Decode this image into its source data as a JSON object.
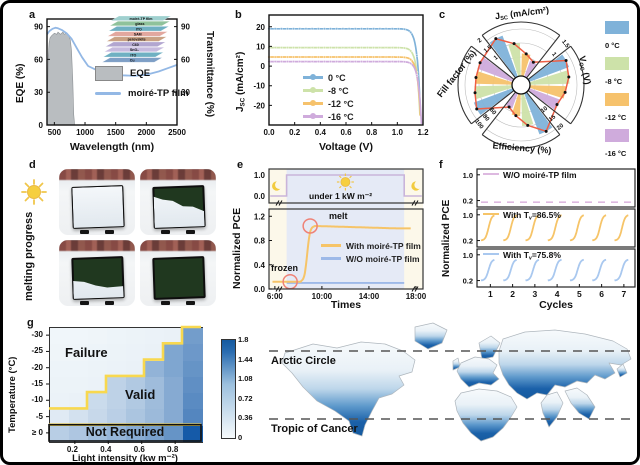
{
  "panels": {
    "a": "a",
    "b": "b",
    "c": "c",
    "d": "d",
    "e": "e",
    "f": "f",
    "g": "g"
  },
  "chart_data": {
    "a": {
      "type": "area+line",
      "panel_label": "a",
      "xlabel": "Wavelength (nm)",
      "ylabel_left": "EQE (%)",
      "ylabel_right": "Transmittance (%)",
      "xlim": [
        380,
        2500
      ],
      "ylim": [
        0,
        97
      ],
      "x_ticks": [
        500,
        1000,
        1500,
        2000,
        2500
      ],
      "y_ticks_left": [
        0,
        30,
        60,
        90
      ],
      "y_ticks_right": [
        30,
        60,
        90
      ],
      "legend": [
        {
          "label": "EQE",
          "type": "area",
          "color": "#b9bdc0"
        },
        {
          "label": "moiré-TP film",
          "type": "line",
          "color": "#93b8e5"
        }
      ],
      "eqe_x": [
        380,
        390,
        400,
        415,
        430,
        460,
        500,
        540,
        560,
        600,
        640,
        660,
        700,
        730,
        760,
        780,
        800,
        815,
        830
      ],
      "eqe_y": [
        0,
        30,
        62,
        75,
        80,
        82,
        84,
        83,
        85,
        83,
        85,
        83,
        84,
        82,
        78,
        68,
        40,
        10,
        0
      ],
      "film_x": [
        380,
        420,
        470,
        520,
        560,
        620,
        700,
        780,
        860,
        950,
        1050,
        1200,
        1400,
        1600,
        1800,
        2000,
        2200,
        2350,
        2500
      ],
      "film_y": [
        83,
        86,
        88,
        89,
        88.5,
        87,
        84,
        79,
        71,
        62,
        54,
        50,
        47,
        45.5,
        45,
        46,
        49,
        52,
        55
      ],
      "inset_layers": [
        {
          "label": "moiré-TP film",
          "color": "#9fd0cf",
          "text": "#333333"
        },
        {
          "label": "glass",
          "color": "#8fc29b",
          "text": "#ffffff"
        },
        {
          "label": "ITO",
          "color": "#6fb0c2",
          "text": "#ffffff"
        },
        {
          "label": "SAM",
          "color": "#e2a79e",
          "text": "#ffffff"
        },
        {
          "label": "perovskite",
          "color": "#c9a183",
          "text": "#ffffff"
        },
        {
          "label": "C60",
          "color": "#b2a6d0",
          "text": "#ffffff"
        },
        {
          "label": "SnO₂",
          "color": "#c6bade",
          "text": "#ffffff"
        },
        {
          "label": "ITO",
          "color": "#6fb0c2",
          "text": "#ffffff"
        },
        {
          "label": "Cu",
          "color": "#7e9fc6",
          "text": "#ffffff"
        }
      ]
    },
    "b": {
      "type": "line",
      "panel_label": "b",
      "xlabel": "Voltage  (V)",
      "ylabel_main": "J",
      "ylabel_sub": "SC",
      "ylabel_unit": " (mA/cm²)",
      "xlim": [
        0,
        1.2
      ],
      "ylim": [
        -30,
        26
      ],
      "x_ticks": [
        "0.0",
        "0.2",
        "0.4",
        "0.6",
        "0.8",
        "1.0",
        "1.2"
      ],
      "y_ticks": [
        20,
        10,
        0,
        -10,
        -20
      ],
      "series": [
        {
          "label": "0 °C",
          "color": "#7fb2d9",
          "jsc": 19.0,
          "voc": 1.16
        },
        {
          "label": "-8 °C",
          "color": "#cde2a9",
          "jsc": 9.4,
          "voc": 1.145
        },
        {
          "label": "-12 °C",
          "color": "#f6c26c",
          "jsc": 4.6,
          "voc": 1.135
        },
        {
          "label": "-16 °C",
          "color": "#cfabdc",
          "jsc": 2.3,
          "voc": 1.125
        }
      ]
    },
    "c": {
      "type": "polar-rose",
      "panel_label": "c",
      "line_color": "#ee5f45",
      "temps": [
        {
          "label": "0 °C",
          "color": "#7fb2d9"
        },
        {
          "label": "-8 °C",
          "color": "#cde2a9"
        },
        {
          "label": "-12 °C",
          "color": "#f6c26c"
        },
        {
          "label": "-16 °C",
          "color": "#cfabdc"
        }
      ],
      "sectors": [
        {
          "name": "jsc",
          "label_main": "J",
          "label_sub": "SC",
          "label_unit": " (mA/cm²)",
          "ticks": [
            "1",
            "1.5",
            "2"
          ],
          "tick_r": [
            0.5,
            0.75,
            1.0
          ],
          "values": [
            0.93,
            0.7,
            0.48,
            0.36
          ]
        },
        {
          "name": "voc",
          "label_main": "V",
          "label_sub": "OC",
          "label_unit": " (V)",
          "ticks": [
            "1",
            "1.5"
          ],
          "tick_r": [
            0.67,
            1.0
          ],
          "values": [
            0.9,
            0.84,
            0.76,
            0.68
          ]
        },
        {
          "name": "eff",
          "label_main": "Efficiency (%)",
          "label_sub": "",
          "label_unit": "",
          "ticks": [
            "10",
            "15",
            "20"
          ],
          "tick_r": [
            0.5,
            0.75,
            1.0
          ],
          "values": [
            0.93,
            0.68,
            0.47,
            0.34
          ]
        },
        {
          "name": "ff",
          "label_main": "Fill factor (%)",
          "label_sub": "",
          "label_unit": "",
          "ticks": [
            "60",
            "80",
            "100"
          ],
          "tick_r": [
            0.6,
            0.8,
            1.0
          ],
          "values": [
            0.88,
            0.8,
            0.78,
            0.8
          ]
        }
      ]
    },
    "d": {
      "type": "photos",
      "panel_label": "d",
      "side_label": "melting progress",
      "photos": [
        {
          "snow_coverage": 1.0
        },
        {
          "snow_coverage": 0.55
        },
        {
          "snow_coverage": 0.3
        },
        {
          "snow_coverage": 0.0
        }
      ]
    },
    "e": {
      "type": "line",
      "panel_label": "e",
      "ylabel": "Normalized PCE",
      "xlabel": "Times",
      "x_ticks": [
        "6:00",
        "10:00",
        "14:00",
        "18:00"
      ],
      "x_tick_hours": [
        6,
        10,
        14,
        18
      ],
      "xlim": [
        5.5,
        18.6
      ],
      "top_y_ticks": [
        "1.0",
        "0.0"
      ],
      "bottom_y_ticks": [
        "1.2",
        "0.8",
        "0.4",
        "0.0"
      ],
      "bottom_y_values": [
        1.2,
        0.8,
        0.4,
        0.0
      ],
      "light_window": [
        7,
        17
      ],
      "power_label": "under 1 kW m⁻²",
      "annotation_melt": "melt",
      "annotation_frozen": "frozen",
      "wave_color": "#c9b4da",
      "legend": [
        {
          "label": "With moiré-TP film",
          "color": "#f6c468"
        },
        {
          "label": "W/O moiré-TP film",
          "color": "#9db9e8"
        }
      ],
      "with_film": {
        "flat": 0.12,
        "rise_center": 8.75,
        "rise_width": 0.12,
        "peak": 1.04,
        "end": 1.0
      },
      "without_film_level": 0.1
    },
    "f": {
      "type": "line-cycles",
      "panel_label": "f",
      "ylabel": "Normalized PCE",
      "xlabel": "Cycles",
      "x_ticks": [
        "1",
        "2",
        "3",
        "4",
        "5",
        "6",
        "7"
      ],
      "y_ticks": [
        "1.0",
        "0.2"
      ],
      "y_tick_values": [
        1.0,
        0.2
      ],
      "subplots": [
        {
          "label_main": "W/O moiré-TP film",
          "label_sub": "",
          "label_rest": "",
          "color": "#ddb9e0",
          "style": "dashed",
          "level": 0.15
        },
        {
          "label_main": "With T",
          "label_sub": "v",
          "label_rest": "=86.5%",
          "color": "#f6c468",
          "style": "cycles",
          "peak": 1.0,
          "base": 0.2
        },
        {
          "label_main": "With T",
          "label_sub": "v",
          "label_rest": "=75.8%",
          "color": "#a9c8ef",
          "style": "cycles",
          "peak": 0.86,
          "base": 0.2
        }
      ]
    },
    "g": {
      "type": "heatmap",
      "panel_label": "g",
      "ylabel": "Temperature (°C)",
      "xlabel": "Light intensity (kw m⁻²)",
      "row_labels": [
        "-30",
        "-25",
        "-20",
        "-15",
        "-10",
        "-5",
        "≥ 0"
      ],
      "x_tick_labels": [
        "0.2",
        "0.4",
        "0.6",
        "0.8"
      ],
      "x_tick_pos": [
        0.17,
        0.39,
        0.61,
        0.83
      ],
      "vmax": 1.8,
      "colorbar_ticks": [
        "1.8",
        "1.44",
        "1.08",
        "0.72",
        "0.36",
        "0"
      ],
      "grid": [
        [
          0.05,
          0.05,
          0.06,
          0.07,
          0.08,
          0.09,
          0.1,
          1.05
        ],
        [
          0.06,
          0.06,
          0.07,
          0.08,
          0.09,
          0.1,
          0.95,
          1.1
        ],
        [
          0.07,
          0.07,
          0.08,
          0.09,
          0.1,
          0.8,
          0.95,
          1.15
        ],
        [
          0.08,
          0.08,
          0.09,
          0.45,
          0.55,
          0.7,
          0.9,
          1.2
        ],
        [
          0.09,
          0.1,
          0.35,
          0.45,
          0.55,
          0.7,
          0.9,
          1.25
        ],
        [
          0.18,
          0.28,
          0.38,
          0.48,
          0.6,
          0.72,
          0.9,
          1.3
        ],
        [
          0.5,
          0.58,
          0.68,
          0.78,
          0.88,
          1.0,
          1.15,
          1.8
        ]
      ],
      "boundary": [
        [
          0,
          5
        ],
        [
          2,
          5
        ],
        [
          2,
          4
        ],
        [
          3,
          4
        ],
        [
          3,
          3
        ],
        [
          5,
          3
        ],
        [
          5,
          2
        ],
        [
          6,
          2
        ],
        [
          6,
          1
        ],
        [
          7,
          1
        ],
        [
          7,
          0
        ],
        [
          8,
          0
        ]
      ],
      "not_required_row": 6,
      "boundary_color": "#f8d84f",
      "regions": {
        "failure": "Failure",
        "valid": "Valid",
        "not_required": "Not Required"
      }
    },
    "map": {
      "type": "map",
      "labels": {
        "arctic": "Arctic Circle",
        "tropic": "Tropic of Cancer"
      }
    }
  }
}
